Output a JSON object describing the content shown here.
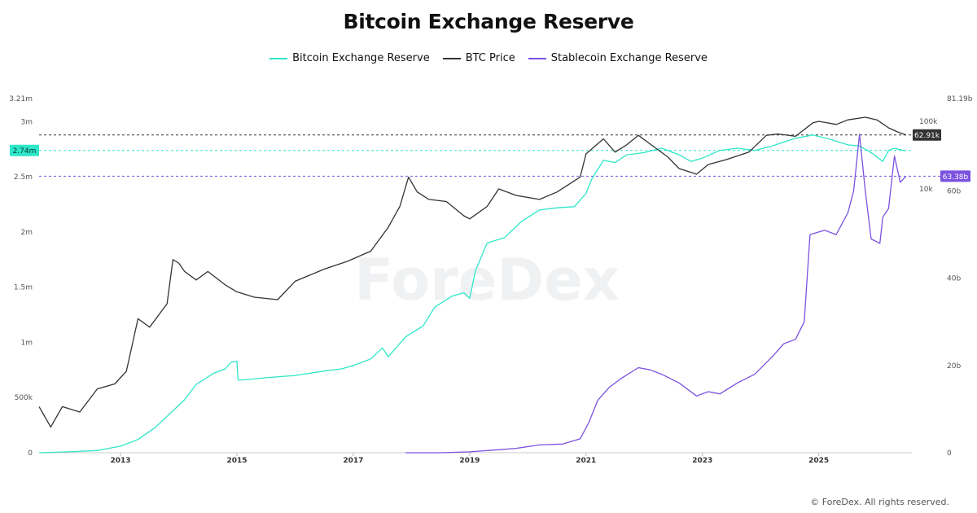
{
  "chart_data": {
    "type": "line",
    "title": "Bitcoin Exchange Reserve",
    "watermark": "ForeDex",
    "footer": "© ForeDex. All rights reserved.",
    "x_range": [
      2011.6,
      2026.6
    ],
    "x_ticks": [
      "2013",
      "2015",
      "2017",
      "2019",
      "2021",
      "2023",
      "2025"
    ],
    "x_tick_values": [
      2013,
      2015,
      2017,
      2019,
      2021,
      2023,
      2025
    ],
    "left_axis": {
      "range": [
        0,
        3210000
      ],
      "ticks": [
        {
          "value": 0,
          "label": "0"
        },
        {
          "value": 500000,
          "label": "500k"
        },
        {
          "value": 1000000,
          "label": "1m"
        },
        {
          "value": 1500000,
          "label": "1.5m"
        },
        {
          "value": 2000000,
          "label": "2m"
        },
        {
          "value": 2500000,
          "label": "2.5m"
        },
        {
          "value": 3000000,
          "label": "3m"
        },
        {
          "value": 3210000,
          "label": "3.21m"
        }
      ]
    },
    "right_axis_stablecoin": {
      "range": [
        0,
        81190000000
      ],
      "ticks": [
        {
          "value": 0,
          "label": "0"
        },
        {
          "value": 20000000000,
          "label": "20b"
        },
        {
          "value": 40000000000,
          "label": "40b"
        },
        {
          "value": 60000000000,
          "label": "60b"
        },
        {
          "value": 81190000000,
          "label": "81.19b"
        }
      ]
    },
    "right_axis_price": {
      "scale": "log",
      "ticks": [
        {
          "value": 10000,
          "label": "10k"
        },
        {
          "value": 100000,
          "label": "100k"
        }
      ]
    },
    "badges": {
      "btc_reserve": {
        "label": "2.74m",
        "value": 2740000
      },
      "btc_price": {
        "label": "62.91k",
        "value": 62910
      },
      "stablecoin": {
        "label": "63.38b",
        "value": 63380000000
      }
    },
    "series": [
      {
        "name": "Bitcoin Exchange Reserve",
        "color": "#2ee6c8",
        "axis": "left",
        "x": [
          2011.6,
          2012.2,
          2012.6,
          2013.0,
          2013.3,
          2013.6,
          2013.9,
          2014.1,
          2014.3,
          2014.6,
          2014.8,
          2014.9,
          2015.0,
          2015.02,
          2015.1,
          2015.5,
          2016.0,
          2016.5,
          2016.8,
          2017.0,
          2017.3,
          2017.5,
          2017.6,
          2017.9,
          2018.2,
          2018.4,
          2018.7,
          2018.9,
          2019.0,
          2019.1,
          2019.3,
          2019.6,
          2019.9,
          2020.2,
          2020.5,
          2020.8,
          2021.0,
          2021.1,
          2021.3,
          2021.5,
          2021.7,
          2022.0,
          2022.3,
          2022.6,
          2022.8,
          2023.0,
          2023.3,
          2023.6,
          2023.9,
          2024.2,
          2024.6,
          2024.9,
          2025.2,
          2025.5,
          2025.7,
          2025.9,
          2026.1,
          2026.2,
          2026.3,
          2026.45,
          2026.5
        ],
        "y": [
          0,
          10000,
          20000,
          60000,
          120000,
          230000,
          380000,
          480000,
          620000,
          720000,
          760000,
          820000,
          830000,
          660000,
          660000,
          680000,
          700000,
          740000,
          760000,
          790000,
          850000,
          950000,
          870000,
          1050000,
          1150000,
          1320000,
          1420000,
          1450000,
          1400000,
          1650000,
          1900000,
          1950000,
          2100000,
          2200000,
          2220000,
          2230000,
          2350000,
          2480000,
          2650000,
          2630000,
          2700000,
          2720000,
          2760000,
          2700000,
          2640000,
          2670000,
          2740000,
          2760000,
          2740000,
          2780000,
          2850000,
          2880000,
          2840000,
          2790000,
          2780000,
          2720000,
          2640000,
          2740000,
          2760000,
          2740000,
          2740000
        ]
      },
      {
        "name": "BTC Price",
        "color": "#333333",
        "axis": "right-log",
        "x": [
          2011.6,
          2011.8,
          2012.0,
          2012.3,
          2012.6,
          2012.9,
          2013.1,
          2013.3,
          2013.5,
          2013.8,
          2013.9,
          2014.0,
          2014.1,
          2014.3,
          2014.5,
          2014.8,
          2015.0,
          2015.3,
          2015.7,
          2016.0,
          2016.5,
          2016.9,
          2017.3,
          2017.6,
          2017.8,
          2017.95,
          2018.1,
          2018.3,
          2018.6,
          2018.9,
          2019.0,
          2019.3,
          2019.5,
          2019.8,
          2020.2,
          2020.5,
          2020.9,
          2021.0,
          2021.3,
          2021.5,
          2021.7,
          2021.9,
          2022.2,
          2022.4,
          2022.6,
          2022.9,
          2023.1,
          2023.4,
          2023.8,
          2024.1,
          2024.3,
          2024.6,
          2024.9,
          2025.0,
          2025.3,
          2025.5,
          2025.8,
          2026.0,
          2026.2,
          2026.35,
          2026.5
        ],
        "y": [
          6,
          3,
          6,
          5,
          11,
          13,
          20,
          120,
          90,
          200,
          900,
          800,
          600,
          450,
          600,
          380,
          300,
          250,
          230,
          430,
          650,
          850,
          1200,
          2700,
          5500,
          15000,
          9000,
          7000,
          6500,
          4000,
          3600,
          5500,
          10000,
          8000,
          7000,
          9000,
          15000,
          33000,
          55000,
          35000,
          45000,
          62000,
          40000,
          30000,
          20000,
          16500,
          23000,
          27000,
          35000,
          62000,
          65000,
          60000,
          95000,
          100000,
          90000,
          105000,
          115000,
          105000,
          80000,
          70000,
          62910
        ]
      },
      {
        "name": "Stablecoin Exchange Reserve",
        "color": "#7b52e0",
        "axis": "right",
        "x": [
          2017.9,
          2018.5,
          2019.0,
          2019.4,
          2019.8,
          2020.2,
          2020.6,
          2020.9,
          2021.05,
          2021.2,
          2021.4,
          2021.6,
          2021.9,
          2022.1,
          2022.3,
          2022.6,
          2022.9,
          2023.1,
          2023.3,
          2023.6,
          2023.9,
          2024.2,
          2024.4,
          2024.6,
          2024.75,
          2024.85,
          2025.1,
          2025.3,
          2025.5,
          2025.6,
          2025.7,
          2025.8,
          2025.9,
          2026.05,
          2026.1,
          2026.2,
          2026.3,
          2026.4,
          2026.5
        ],
        "y": [
          0,
          0,
          200000000,
          600000000,
          1000000000,
          1800000000,
          2000000000,
          3200000000,
          7000000000,
          12000000000,
          15000000000,
          17000000000,
          19500000000,
          19000000000,
          18000000000,
          16000000000,
          13000000000,
          14000000000,
          13500000000,
          16000000000,
          18000000000,
          22000000000,
          25000000000,
          26000000000,
          30000000000,
          50000000000,
          51000000000,
          50000000000,
          55000000000,
          60000000000,
          73000000000,
          60000000000,
          49000000000,
          48000000000,
          54000000000,
          56000000000,
          68000000000,
          62000000000,
          63380000000
        ]
      }
    ]
  }
}
